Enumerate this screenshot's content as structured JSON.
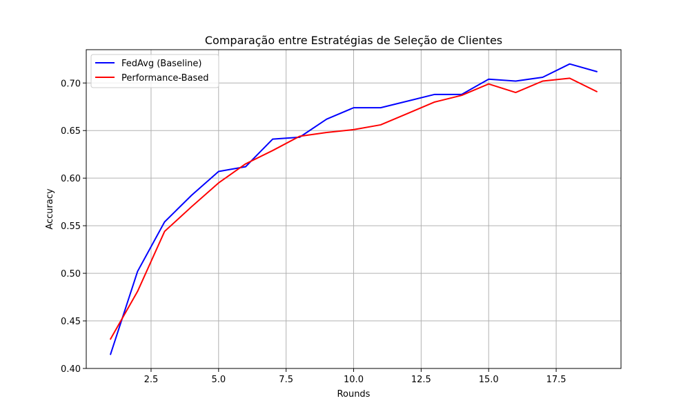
{
  "chart_data": {
    "type": "line",
    "title": "Comparação entre Estratégias de Seleção de Clientes",
    "xlabel": "Rounds",
    "ylabel": "Accuracy",
    "xlim": [
      0.1,
      19.9
    ],
    "ylim": [
      0.4,
      0.735
    ],
    "xticks": [
      2.5,
      5.0,
      7.5,
      10.0,
      12.5,
      15.0,
      17.5
    ],
    "xtick_labels": [
      "2.5",
      "5.0",
      "7.5",
      "10.0",
      "12.5",
      "15.0",
      "17.5"
    ],
    "yticks": [
      0.4,
      0.45,
      0.5,
      0.55,
      0.6,
      0.65,
      0.7
    ],
    "ytick_labels": [
      "0.40",
      "0.45",
      "0.50",
      "0.55",
      "0.60",
      "0.65",
      "0.70"
    ],
    "grid": true,
    "legend_position": "top-left",
    "x": [
      1,
      2,
      3,
      4,
      5,
      6,
      7,
      8,
      9,
      10,
      11,
      12,
      13,
      14,
      15,
      16,
      17,
      18,
      19
    ],
    "series": [
      {
        "name": "FedAvg (Baseline)",
        "color": "#0000ff",
        "values": [
          0.415,
          0.502,
          0.554,
          0.582,
          0.607,
          0.612,
          0.641,
          0.643,
          0.662,
          0.674,
          0.674,
          0.681,
          0.688,
          0.688,
          0.704,
          0.702,
          0.706,
          0.72,
          0.712
        ]
      },
      {
        "name": "Performance-Based",
        "color": "#ff0000",
        "values": [
          0.431,
          0.481,
          0.544,
          0.57,
          0.595,
          0.615,
          0.629,
          0.644,
          0.648,
          0.651,
          0.656,
          0.668,
          0.68,
          0.687,
          0.699,
          0.69,
          0.702,
          0.705,
          0.691
        ]
      }
    ]
  }
}
